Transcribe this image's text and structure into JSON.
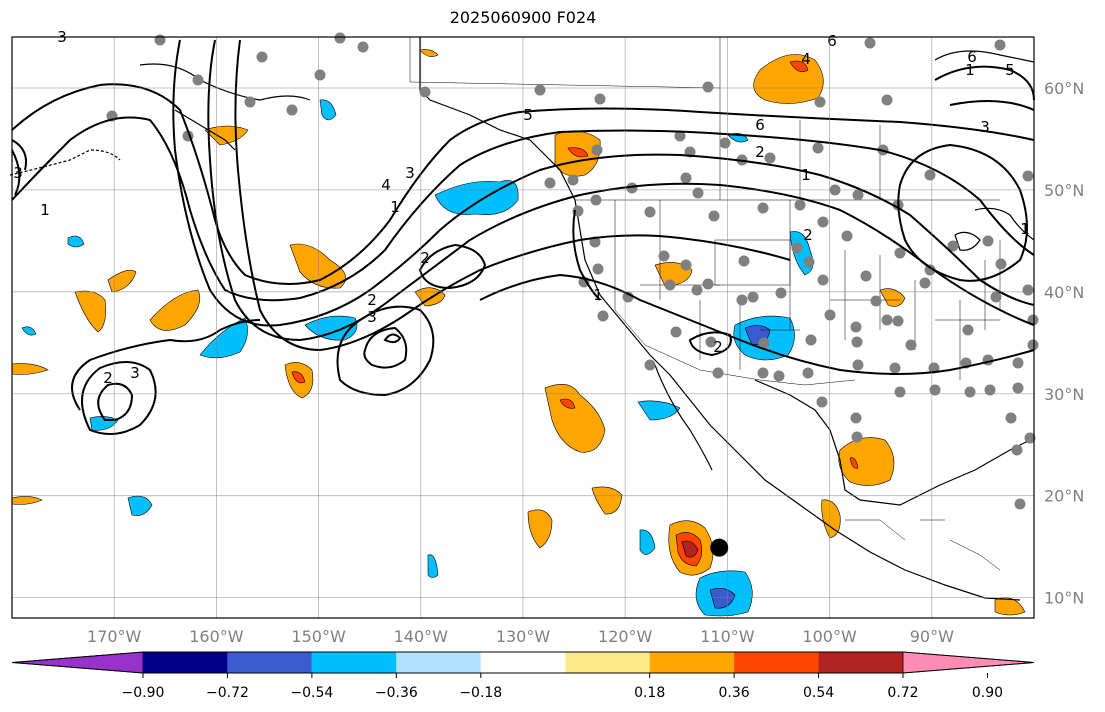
{
  "title": "2025060900 F024",
  "map": {
    "lon_range": [
      -180,
      -80
    ],
    "lat_range": [
      8,
      65
    ],
    "lon_ticks": [
      "170°W",
      "160°W",
      "150°W",
      "140°W",
      "130°W",
      "120°W",
      "110°W",
      "100°W",
      "90°W"
    ],
    "lat_ticks": [
      "60°N",
      "50°N",
      "40°N",
      "30°N",
      "20°N",
      "10°N"
    ],
    "grid": true,
    "contour_labels": [
      "3",
      "6",
      "4",
      "5",
      "5",
      "6",
      "2",
      "1",
      "4",
      "3",
      "1",
      "2",
      "2",
      "3",
      "2",
      "1",
      "2",
      "1",
      "3",
      "3",
      "2",
      "1",
      "6",
      "3",
      "1"
    ],
    "marker": {
      "lon": -110.8,
      "lat": 14.9,
      "color": "#000000"
    }
  },
  "colorbar": {
    "tick_labels": [
      "−0.90",
      "−0.72",
      "−0.54",
      "−0.36",
      "−0.18",
      "0.18",
      "0.36",
      "0.54",
      "0.72",
      "0.90"
    ],
    "colors": [
      "#9932cc",
      "#00008b",
      "#3a5bd0",
      "#00bfff",
      "#b0e2ff",
      "#ffffff",
      "#ffea8a",
      "#ffa500",
      "#ff4500",
      "#b22222",
      "#ff8cb4"
    ],
    "extend": "both"
  }
}
